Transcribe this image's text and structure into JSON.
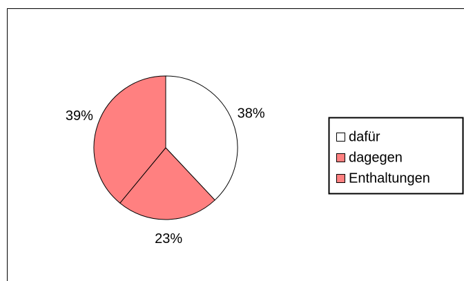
{
  "chart_data": {
    "type": "pie",
    "categories": [
      "dafür",
      "dagegen",
      "Enthaltungen"
    ],
    "values": [
      38,
      23,
      39
    ],
    "value_labels": [
      "38%",
      "23%",
      "39%"
    ],
    "colors": [
      "#ffffff",
      "#ff8080",
      "#ff8080"
    ],
    "legend": "right"
  }
}
